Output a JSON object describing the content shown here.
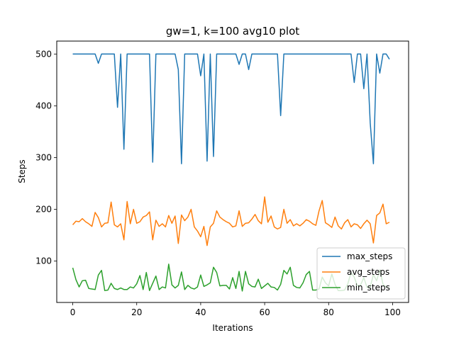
{
  "chart_data": {
    "type": "line",
    "title": "gw=1, k=100 avg10 plot",
    "xlabel": "Iterations",
    "ylabel": "Steps",
    "xlim": [
      -5,
      105
    ],
    "ylim": [
      20,
      525
    ],
    "xticks": [
      0,
      20,
      40,
      60,
      80,
      100
    ],
    "yticks": [
      100,
      200,
      300,
      400,
      500
    ],
    "grid": false,
    "legend_position": "lower-right",
    "x": [
      0,
      1,
      2,
      3,
      4,
      5,
      6,
      7,
      8,
      9,
      10,
      11,
      12,
      13,
      14,
      15,
      16,
      17,
      18,
      19,
      20,
      21,
      22,
      23,
      24,
      25,
      26,
      27,
      28,
      29,
      30,
      31,
      32,
      33,
      34,
      35,
      36,
      37,
      38,
      39,
      40,
      41,
      42,
      43,
      44,
      45,
      46,
      47,
      48,
      49,
      50,
      51,
      52,
      53,
      54,
      55,
      56,
      57,
      58,
      59,
      60,
      61,
      62,
      63,
      64,
      65,
      66,
      67,
      68,
      69,
      70,
      71,
      72,
      73,
      74,
      75,
      76,
      77,
      78,
      79,
      80,
      81,
      82,
      83,
      84,
      85,
      86,
      87,
      88,
      89,
      90,
      91,
      92,
      93,
      94,
      95,
      96,
      97,
      98,
      99
    ],
    "series": [
      {
        "name": "max_steps",
        "color": "#1f77b4",
        "values": [
          500,
          500,
          500,
          500,
          500,
          500,
          500,
          500,
          482,
          500,
          500,
          500,
          500,
          500,
          397,
          500,
          316,
          500,
          500,
          500,
          500,
          500,
          500,
          500,
          500,
          291,
          500,
          500,
          500,
          500,
          500,
          500,
          500,
          470,
          288,
          500,
          500,
          500,
          500,
          500,
          458,
          500,
          293,
          500,
          302,
          500,
          500,
          500,
          500,
          500,
          500,
          500,
          480,
          500,
          500,
          470,
          500,
          500,
          500,
          500,
          500,
          500,
          500,
          500,
          500,
          381,
          500,
          500,
          500,
          500,
          500,
          500,
          500,
          500,
          500,
          500,
          500,
          500,
          500,
          500,
          500,
          500,
          500,
          500,
          500,
          500,
          500,
          500,
          445,
          500,
          500,
          433,
          500,
          367,
          288,
          500,
          463,
          500,
          500,
          490
        ]
      },
      {
        "name": "avg_steps",
        "color": "#ff7f0e",
        "values": [
          170,
          177,
          176,
          182,
          176,
          172,
          167,
          194,
          184,
          166,
          173,
          174,
          214,
          170,
          166,
          172,
          141,
          215,
          172,
          200,
          173,
          176,
          185,
          188,
          195,
          141,
          179,
          167,
          172,
          166,
          188,
          173,
          187,
          134,
          189,
          178,
          185,
          200,
          166,
          158,
          147,
          167,
          130,
          166,
          173,
          197,
          185,
          180,
          176,
          173,
          166,
          168,
          197,
          167,
          173,
          174,
          181,
          190,
          178,
          172,
          224,
          175,
          187,
          166,
          162,
          165,
          200,
          173,
          180,
          168,
          172,
          168,
          173,
          180,
          177,
          172,
          169,
          197,
          217,
          174,
          170,
          165,
          185,
          168,
          162,
          174,
          180,
          166,
          172,
          170,
          163,
          172,
          179,
          172,
          135,
          188,
          193,
          210,
          172,
          175
        ]
      },
      {
        "name": "min_steps",
        "color": "#2ca02c",
        "values": [
          87,
          64,
          50,
          62,
          63,
          47,
          46,
          45,
          73,
          82,
          43,
          44,
          57,
          47,
          45,
          48,
          45,
          45,
          50,
          48,
          56,
          72,
          45,
          78,
          43,
          57,
          71,
          45,
          50,
          48,
          94,
          54,
          48,
          53,
          79,
          45,
          53,
          48,
          46,
          50,
          73,
          51,
          54,
          58,
          88,
          78,
          52,
          53,
          53,
          46,
          68,
          47,
          80,
          42,
          80,
          56,
          51,
          50,
          65,
          47,
          52,
          57,
          50,
          49,
          44,
          55,
          82,
          75,
          88,
          53,
          49,
          48,
          58,
          74,
          80,
          44,
          44,
          46,
          69,
          58,
          52,
          75,
          55,
          43,
          43,
          44,
          56,
          78,
          69,
          52,
          54,
          68,
          49,
          50,
          74,
          62,
          83,
          55,
          50,
          47
        ]
      }
    ]
  }
}
